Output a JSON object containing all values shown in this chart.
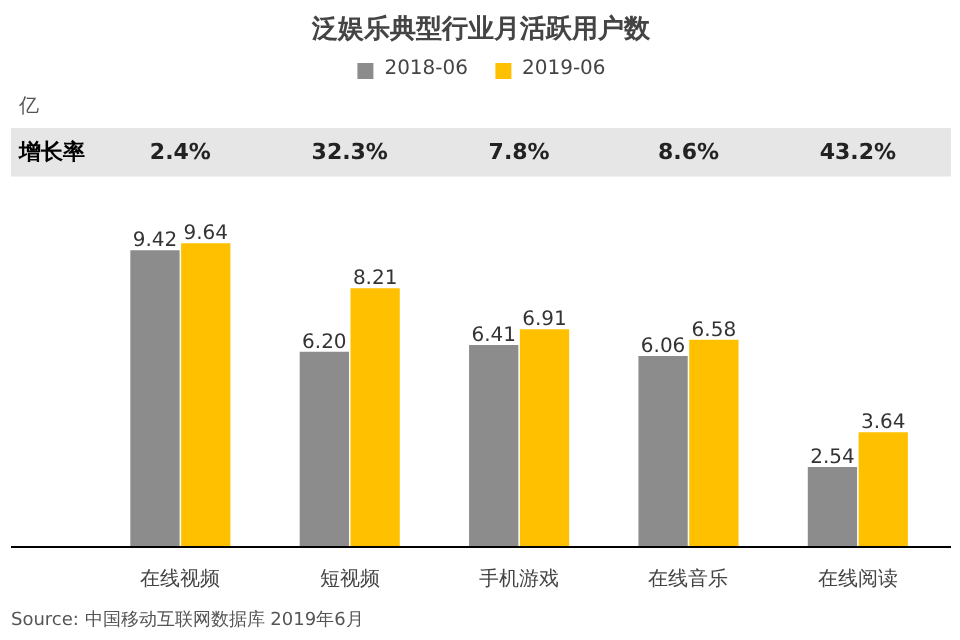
{
  "chart_data": {
    "type": "bar",
    "title": "泛娱乐典型行业月活跃用户数",
    "categories": [
      "在线视频",
      "短视频",
      "手机游戏",
      "在线音乐",
      "在线阅读"
    ],
    "series": [
      {
        "name": "2018-06",
        "color": "#8c8c8c",
        "values": [
          9.42,
          6.2,
          6.41,
          6.06,
          2.54
        ],
        "value_labels": [
          "9.42",
          "6.20",
          "6.41",
          "6.06",
          "2.54"
        ]
      },
      {
        "name": "2019-06",
        "color": "#ffc000",
        "values": [
          9.64,
          8.21,
          6.91,
          6.58,
          3.64
        ],
        "value_labels": [
          "9.64",
          "8.21",
          "6.91",
          "6.58",
          "3.64"
        ]
      }
    ],
    "legend": "top",
    "annotations": [
      "亿",
      "增长率",
      "2.4%",
      "32.3%",
      "7.8%",
      "8.6%",
      "43.2%",
      "Source: 中国移动互联网数据库 2019年6月"
    ]
  }
}
